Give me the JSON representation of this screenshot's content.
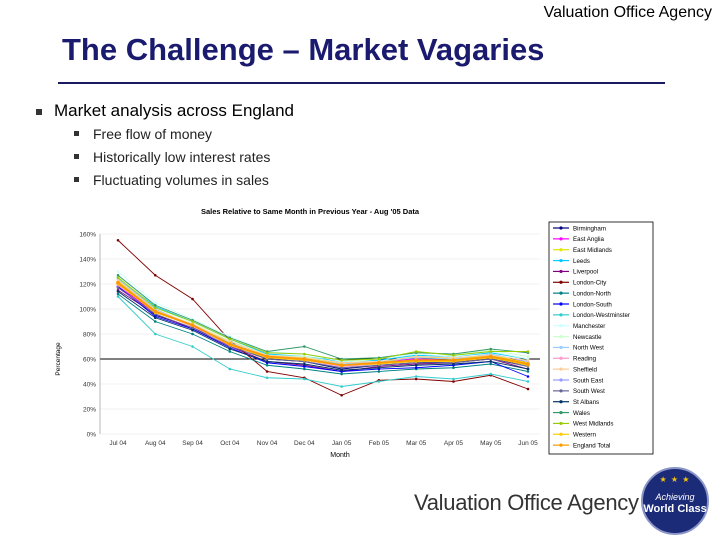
{
  "header": {
    "org": "Valuation Office Agency"
  },
  "title": "The Challenge – Market Vagaries",
  "bullets": {
    "main": "Market analysis across England",
    "subs": [
      "Free flow of money",
      "Historically low interest rates",
      "Fluctuating volumes in sales"
    ]
  },
  "footer": {
    "brand": "Valuation Office Agency",
    "badge_line1": "Achieving",
    "badge_line2": "World Class"
  },
  "chart_data": {
    "type": "line",
    "title": "Sales Relative to Same Month in Previous Year - Aug '05 Data",
    "xlabel": "Month",
    "ylabel": "Percentage",
    "ylim": [
      0,
      160
    ],
    "y_ticks": [
      "0%",
      "20%",
      "40%",
      "60%",
      "80%",
      "100%",
      "120%",
      "140%",
      "160%"
    ],
    "categories": [
      "Jul 04",
      "Aug 04",
      "Sep 04",
      "Oct 04",
      "Nov 04",
      "Dec 04",
      "Jan 05",
      "Feb 05",
      "Mar 05",
      "Apr 05",
      "May 05",
      "Jun 05"
    ],
    "series": [
      {
        "name": "Birmingham",
        "color": "#000080",
        "values": [
          120,
          95,
          85,
          72,
          60,
          58,
          52,
          55,
          57,
          58,
          60,
          55
        ]
      },
      {
        "name": "East Anglia",
        "color": "#ff00ff",
        "values": [
          118,
          97,
          88,
          70,
          62,
          60,
          55,
          58,
          60,
          59,
          62,
          58
        ]
      },
      {
        "name": "East Midlands",
        "color": "#e6e600",
        "values": [
          122,
          100,
          86,
          74,
          63,
          61,
          56,
          57,
          62,
          60,
          63,
          57
        ]
      },
      {
        "name": "Leeds",
        "color": "#00ccff",
        "values": [
          125,
          102,
          90,
          76,
          64,
          62,
          58,
          59,
          63,
          62,
          65,
          60
        ]
      },
      {
        "name": "Liverpool",
        "color": "#800080",
        "values": [
          115,
          96,
          84,
          70,
          58,
          55,
          50,
          54,
          56,
          57,
          60,
          52
        ]
      },
      {
        "name": "London-City",
        "color": "#800000",
        "values": [
          155,
          127,
          108,
          75,
          50,
          45,
          31,
          43,
          44,
          42,
          47,
          36
        ]
      },
      {
        "name": "London-North",
        "color": "#008080",
        "values": [
          112,
          90,
          80,
          66,
          55,
          52,
          48,
          50,
          52,
          53,
          56,
          50
        ]
      },
      {
        "name": "London-South",
        "color": "#0000ff",
        "values": [
          118,
          94,
          84,
          69,
          57,
          54,
          50,
          52,
          53,
          55,
          58,
          46
        ]
      },
      {
        "name": "London-Westminster",
        "color": "#33cccc",
        "values": [
          110,
          80,
          70,
          52,
          45,
          44,
          38,
          42,
          46,
          44,
          48,
          42
        ]
      },
      {
        "name": "Manchester",
        "color": "#ccffff",
        "values": [
          130,
          105,
          92,
          78,
          66,
          64,
          58,
          60,
          64,
          62,
          66,
          60
        ]
      },
      {
        "name": "Newcastle",
        "color": "#ccffcc",
        "values": [
          126,
          101,
          89,
          75,
          63,
          62,
          57,
          60,
          66,
          63,
          67,
          62
        ]
      },
      {
        "name": "North West",
        "color": "#99ccff",
        "values": [
          124,
          100,
          87,
          73,
          62,
          60,
          56,
          58,
          61,
          60,
          64,
          58
        ]
      },
      {
        "name": "Reading",
        "color": "#ff99cc",
        "values": [
          119,
          98,
          86,
          71,
          61,
          59,
          54,
          56,
          58,
          58,
          61,
          55
        ]
      },
      {
        "name": "Sheffield",
        "color": "#ffcc99",
        "values": [
          123,
          99,
          88,
          74,
          63,
          61,
          57,
          58,
          62,
          61,
          63,
          59
        ]
      },
      {
        "name": "South East",
        "color": "#9999ff",
        "values": [
          121,
          98,
          87,
          72,
          62,
          60,
          55,
          57,
          59,
          59,
          62,
          56
        ]
      },
      {
        "name": "South West",
        "color": "#666699",
        "values": [
          117,
          96,
          85,
          70,
          60,
          58,
          53,
          55,
          57,
          57,
          60,
          54
        ]
      },
      {
        "name": "St Albans",
        "color": "#003366",
        "values": [
          114,
          93,
          83,
          68,
          58,
          56,
          51,
          53,
          55,
          56,
          58,
          52
        ]
      },
      {
        "name": "Wales",
        "color": "#339966",
        "values": [
          127,
          103,
          91,
          77,
          66,
          70,
          60,
          61,
          65,
          64,
          68,
          65
        ]
      },
      {
        "name": "West Midlands",
        "color": "#99cc00",
        "values": [
          125,
          101,
          90,
          76,
          65,
          64,
          59,
          60,
          66,
          63,
          66,
          66
        ]
      },
      {
        "name": "Western",
        "color": "#ffcc00",
        "values": [
          120,
          97,
          87,
          71,
          61,
          59,
          55,
          56,
          58,
          58,
          61,
          55
        ]
      },
      {
        "name": "England Total",
        "color": "#ff9900",
        "values": [
          121,
          98,
          87,
          72,
          62,
          60,
          55,
          57,
          59,
          59,
          62,
          56
        ]
      }
    ]
  }
}
